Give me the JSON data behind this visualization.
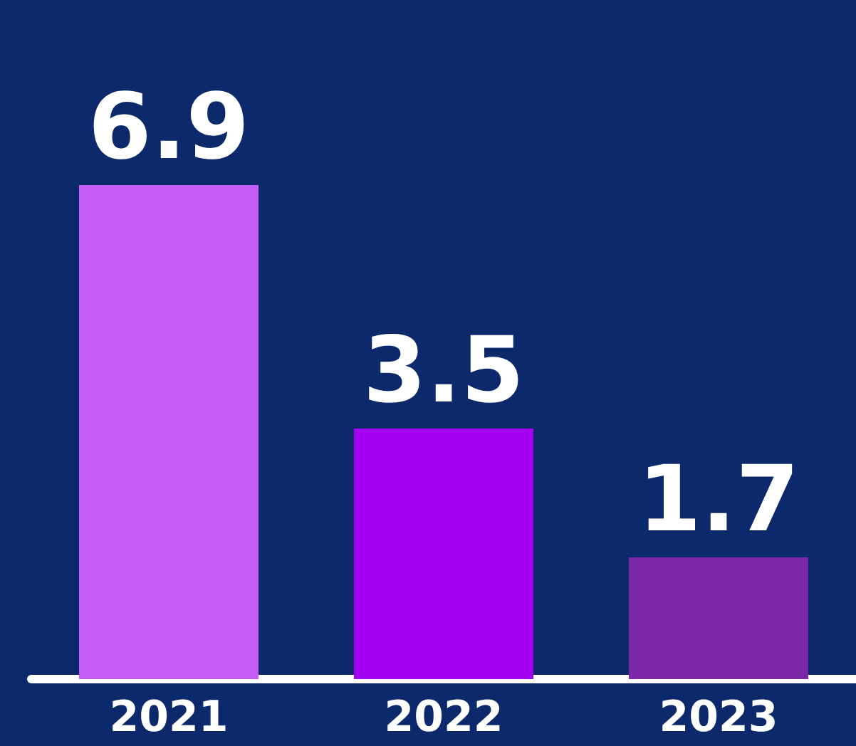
{
  "chart_data": {
    "type": "bar",
    "categories": [
      "2021",
      "2022",
      "2023"
    ],
    "values": [
      6.9,
      3.5,
      1.7
    ],
    "colors": [
      "#c55cf5",
      "#a300f2",
      "#7b27a8"
    ],
    "data_labels": true
  }
}
